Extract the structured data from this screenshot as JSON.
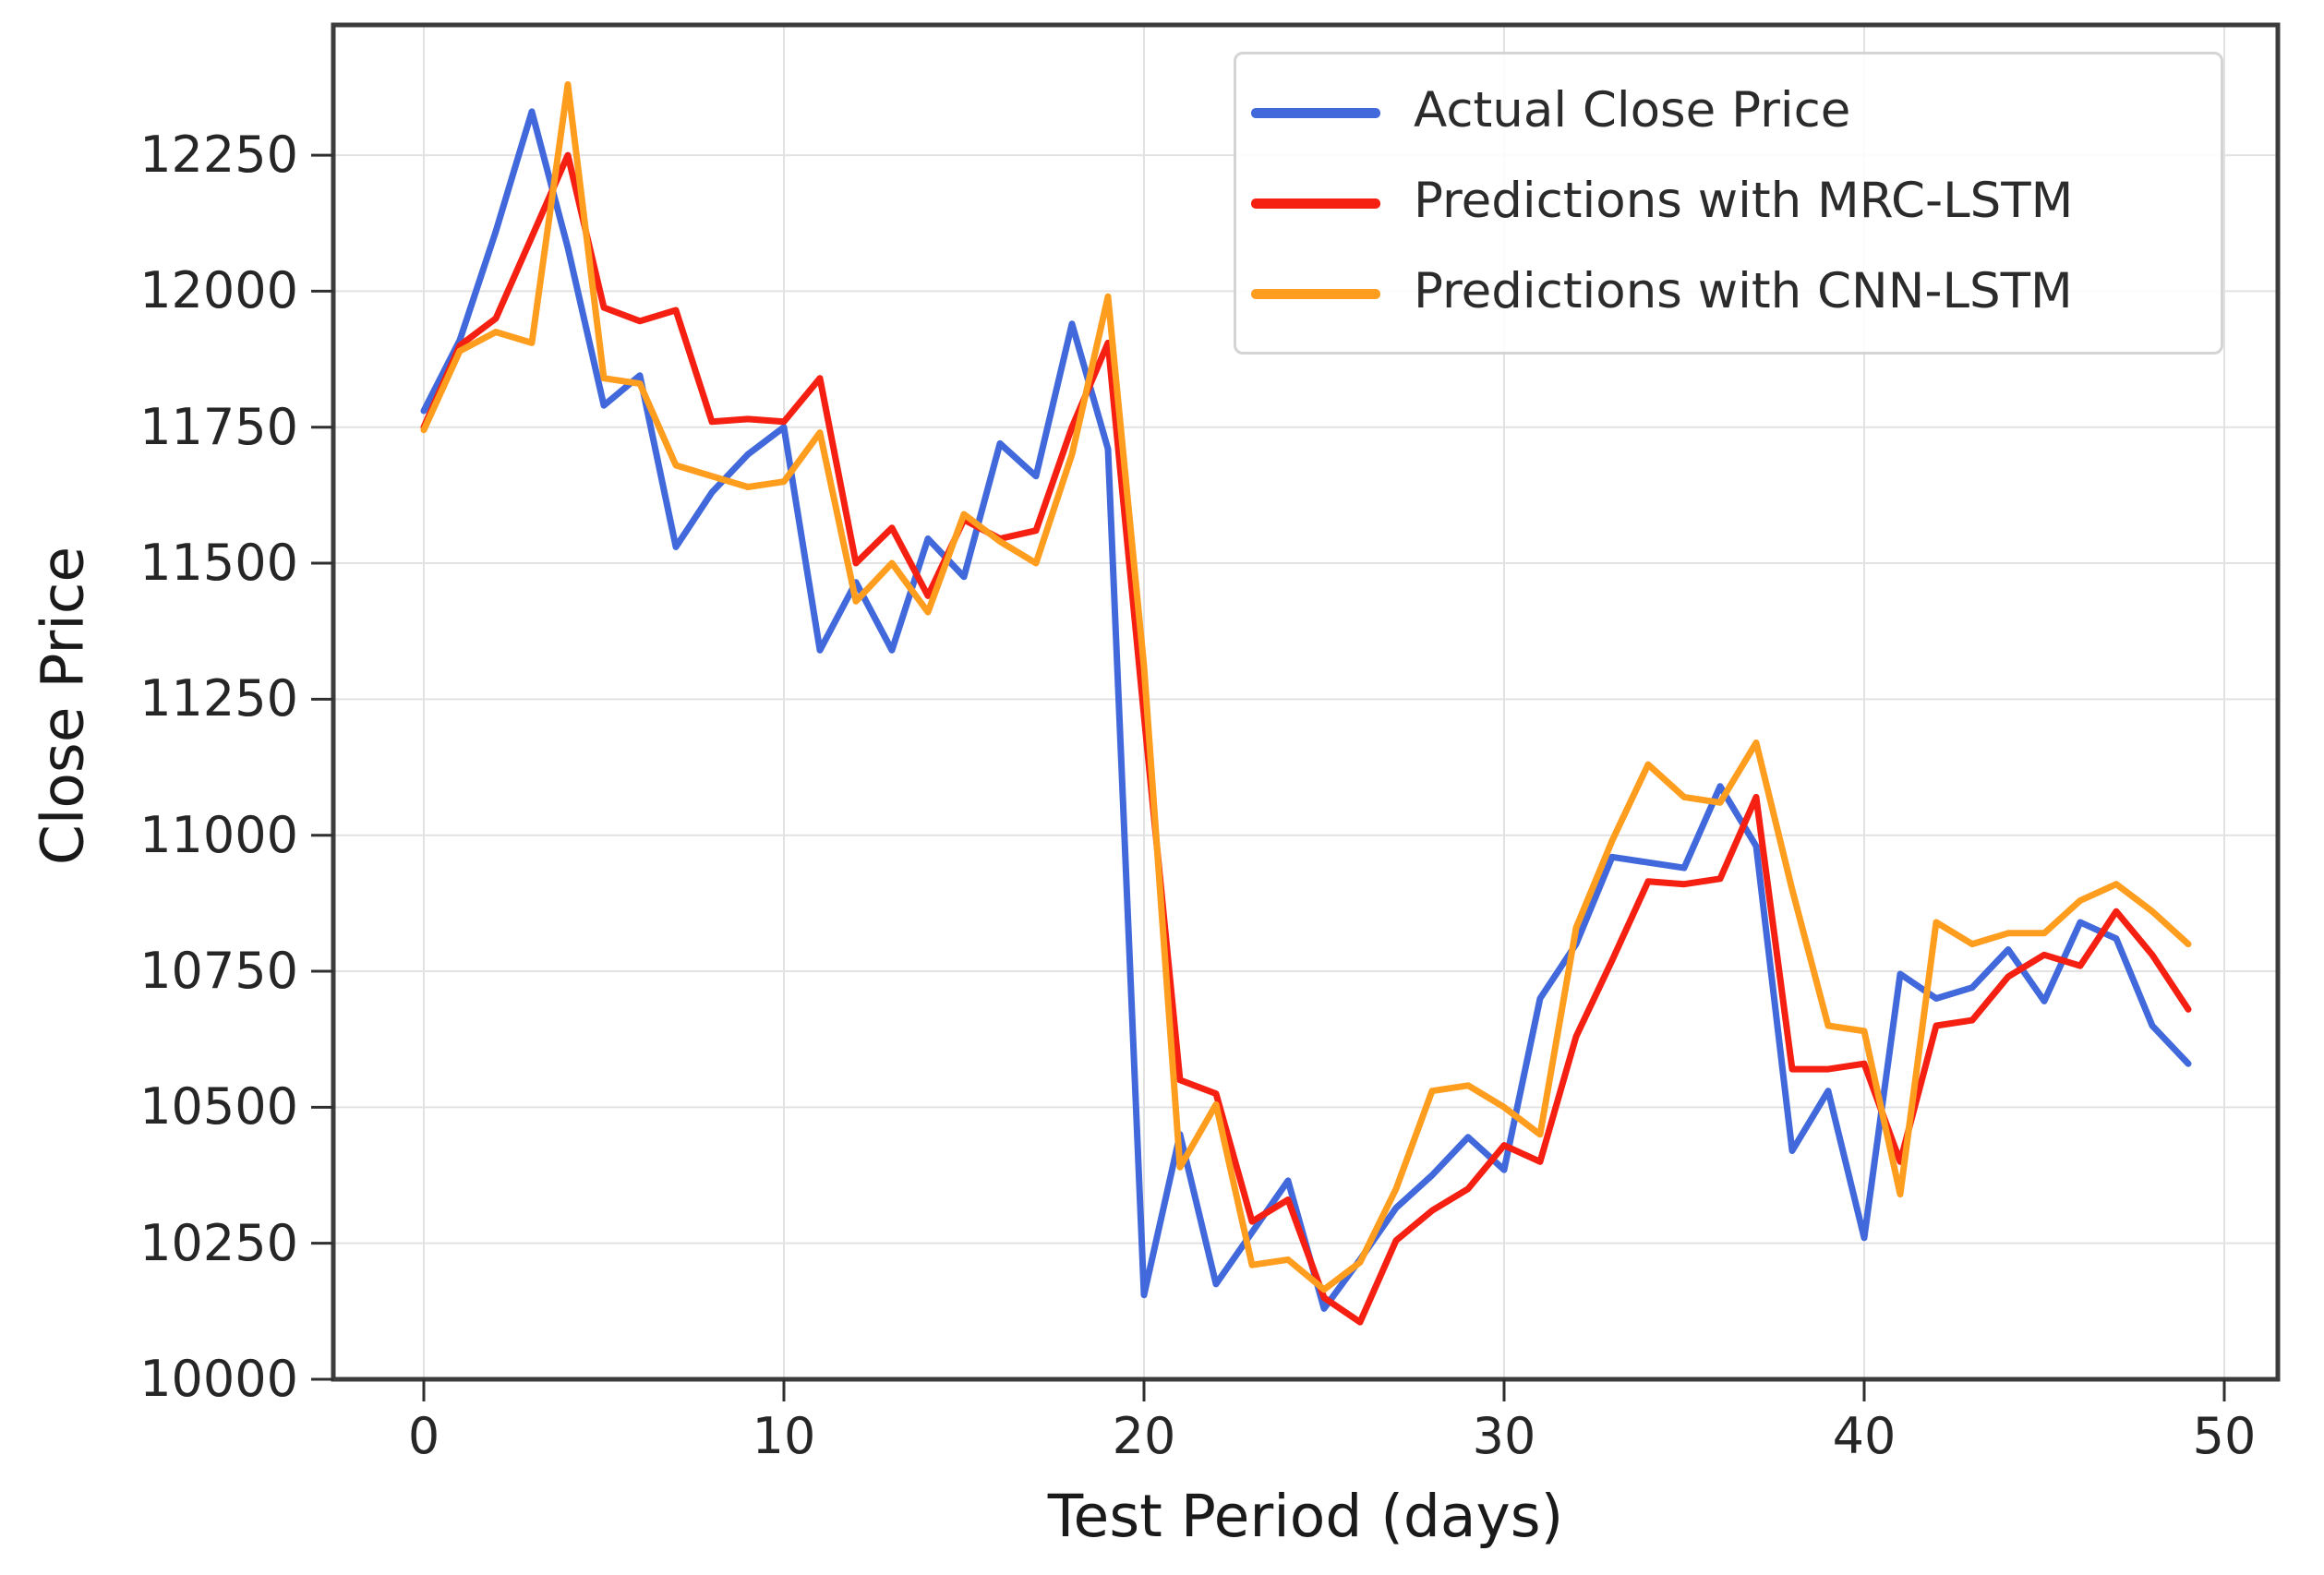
{
  "figure": {
    "background": "#ffffff",
    "frame_color": "#3c3c3c",
    "grid_color": "#e2e2e2",
    "tick_color": "#2f2f2f"
  },
  "chart_data": {
    "type": "line",
    "title": "",
    "xlabel": "Test Period (days)",
    "ylabel": "Close Price",
    "x_ticks": [
      0,
      10,
      20,
      30,
      40,
      50
    ],
    "y_ticks": [
      10000,
      10250,
      10500,
      10750,
      11000,
      11250,
      11500,
      11750,
      12000,
      12250
    ],
    "xlim": [
      -2.6,
      51.5
    ],
    "ylim": [
      10000,
      12490
    ],
    "grid": true,
    "legend_position": "upper right",
    "x": [
      0,
      1,
      2,
      3,
      4,
      5,
      6,
      7,
      8,
      9,
      10,
      11,
      12,
      13,
      14,
      15,
      16,
      17,
      18,
      19,
      20,
      21,
      22,
      23,
      24,
      25,
      26,
      27,
      28,
      29,
      30,
      31,
      32,
      33,
      34,
      35,
      36,
      37,
      38,
      39,
      40,
      41,
      42,
      43,
      44,
      45,
      46,
      47,
      48,
      49
    ],
    "series": [
      {
        "name": "Actual Close Price",
        "color": "#4169DB",
        "values": [
          11780,
          11910,
          12110,
          12330,
          12080,
          11790,
          11845,
          11530,
          11630,
          11700,
          11750,
          11340,
          11465,
          11340,
          11545,
          11475,
          11720,
          11660,
          11940,
          11710,
          10155,
          10450,
          10175,
          10270,
          10365,
          10130,
          10220,
          10315,
          10375,
          10445,
          10385,
          10700,
          10800,
          10960,
          10950,
          10940,
          11090,
          10980,
          10420,
          10530,
          10260,
          10745,
          10700,
          10720,
          10790,
          10695,
          10840,
          10810,
          10650,
          10580
        ]
      },
      {
        "name": "Predictions with MRC-LSTM",
        "color": "#F52011",
        "values": [
          11750,
          11900,
          11950,
          12100,
          12250,
          11970,
          11945,
          11965,
          11760,
          11765,
          11760,
          11840,
          11500,
          11565,
          11440,
          11580,
          11545,
          11560,
          11750,
          11905,
          11220,
          10550,
          10525,
          10290,
          10330,
          10150,
          10105,
          10255,
          10310,
          10350,
          10430,
          10400,
          10630,
          10770,
          10915,
          10910,
          10920,
          11070,
          10570,
          10570,
          10580,
          10400,
          10650,
          10660,
          10740,
          10780,
          10760,
          10860,
          10780,
          10680
        ]
      },
      {
        "name": "Predictions with CNN-LSTM",
        "color": "#FF9D1F",
        "values": [
          11745,
          11890,
          11925,
          11905,
          12380,
          11840,
          11830,
          11680,
          11660,
          11640,
          11650,
          11740,
          11430,
          11500,
          11410,
          11590,
          11540,
          11500,
          11700,
          11990,
          11310,
          10390,
          10505,
          10210,
          10220,
          10165,
          10215,
          10350,
          10530,
          10540,
          10500,
          10450,
          10830,
          10990,
          11130,
          11070,
          11060,
          11170,
          10900,
          10650,
          10640,
          10340,
          10840,
          10800,
          10820,
          10820,
          10880,
          10910,
          10860,
          10800
        ]
      }
    ]
  },
  "legend": {
    "items": [
      {
        "label": "Actual Close Price"
      },
      {
        "label": "Predictions with MRC-LSTM"
      },
      {
        "label": "Predictions with CNN-LSTM"
      }
    ]
  }
}
